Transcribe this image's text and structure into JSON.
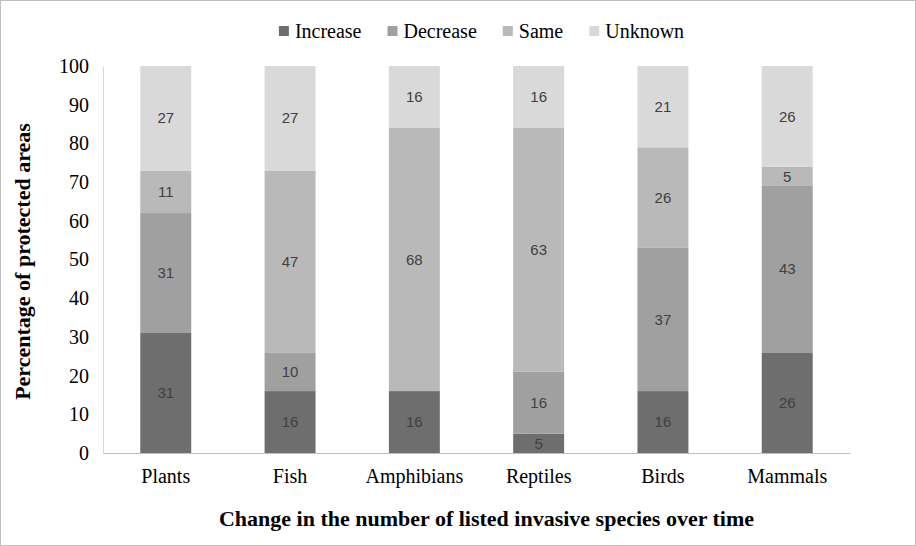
{
  "chart_data": {
    "type": "bar",
    "stacked": true,
    "data_labels": true,
    "legend": "top",
    "grid": false,
    "x_label": "Change in the number of listed invasive species over time",
    "y_label": "Percentage of protected areas",
    "categories": [
      "Plants",
      "Fish",
      "Amphibians",
      "Reptiles",
      "Birds",
      "Mammals"
    ],
    "series": [
      {
        "name": "Increase",
        "color": "#6e6e6e",
        "values": [
          31,
          16,
          16,
          5,
          16,
          26
        ]
      },
      {
        "name": "Decrease",
        "color": "#a0a0a0",
        "values": [
          31,
          10,
          0,
          16,
          37,
          43
        ]
      },
      {
        "name": "Same",
        "color": "#b9b9b9",
        "values": [
          11,
          47,
          68,
          63,
          26,
          5
        ]
      },
      {
        "name": "Unknown",
        "color": "#d9d9d9",
        "values": [
          27,
          27,
          16,
          16,
          21,
          26
        ]
      }
    ],
    "ylim": [
      0,
      100
    ],
    "yticks": [
      0,
      10,
      20,
      30,
      40,
      50,
      60,
      70,
      80,
      90,
      100
    ]
  }
}
